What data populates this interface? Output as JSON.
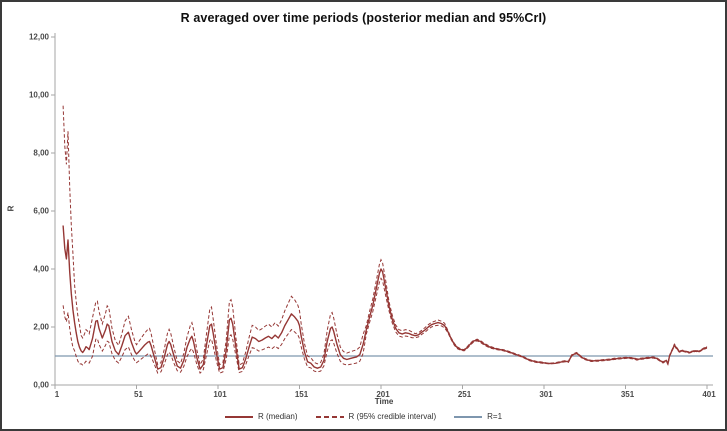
{
  "chart_data": {
    "type": "line",
    "title": "R averaged over time periods (posterior median and 95%CrI)",
    "xlabel": "Time",
    "ylabel": "R",
    "xlim": [
      1,
      401
    ],
    "ylim": [
      0,
      12
    ],
    "grid": false,
    "legend_position": "bottom",
    "x_ticks": [
      {
        "value": 1,
        "label": "1"
      },
      {
        "value": 51,
        "label": "51"
      },
      {
        "value": 101,
        "label": "101"
      },
      {
        "value": 151,
        "label": "151"
      },
      {
        "value": 201,
        "label": "201"
      },
      {
        "value": 251,
        "label": "251"
      },
      {
        "value": 301,
        "label": "301"
      },
      {
        "value": 351,
        "label": "351"
      },
      {
        "value": 401,
        "label": "401"
      }
    ],
    "y_ticks": [
      {
        "value": 0,
        "label": "0,00"
      },
      {
        "value": 2,
        "label": "2,00"
      },
      {
        "value": 4,
        "label": "4,00"
      },
      {
        "value": 6,
        "label": "6,00"
      },
      {
        "value": 8,
        "label": "8,00"
      },
      {
        "value": 10,
        "label": "10,00"
      },
      {
        "value": 12,
        "label": "12,00"
      }
    ],
    "reference_line": {
      "label": "R=1",
      "value": 1,
      "color": "#7E96AE"
    },
    "series": [
      {
        "name": "R (median)",
        "style": "solid",
        "color": "#953735"
      },
      {
        "name": "R (95% credible interval)",
        "style": "dashed",
        "color": "#953735"
      }
    ],
    "columns": [
      "time",
      "lower95",
      "median",
      "upper95"
    ],
    "points": [
      [
        6,
        2.75,
        5.5,
        9.63
      ],
      [
        7,
        2.35,
        4.7,
        8.23
      ],
      [
        8,
        2.18,
        4.35,
        7.61
      ],
      [
        9,
        2.5,
        5.0,
        8.75
      ],
      [
        10,
        1.95,
        3.9,
        6.83
      ],
      [
        11,
        1.58,
        3.15,
        5.51
      ],
      [
        12,
        1.3,
        2.6,
        4.55
      ],
      [
        13,
        1.18,
        2.15,
        3.44
      ],
      [
        14,
        0.99,
        1.8,
        2.88
      ],
      [
        15,
        0.83,
        1.5,
        2.4
      ],
      [
        16,
        0.72,
        1.3,
        2.08
      ],
      [
        17,
        0.73,
        1.18,
        1.71
      ],
      [
        18,
        0.69,
        1.12,
        1.62
      ],
      [
        19,
        0.74,
        1.2,
        1.74
      ],
      [
        20,
        0.82,
        1.32,
        1.91
      ],
      [
        21,
        0.79,
        1.28,
        1.86
      ],
      [
        22,
        0.76,
        1.22,
        1.77
      ],
      [
        24,
        0.99,
        1.6,
        2.32
      ],
      [
        26,
        1.58,
        2.2,
        2.86
      ],
      [
        27,
        1.6,
        2.22,
        2.89
      ],
      [
        28,
        1.4,
        1.95,
        2.54
      ],
      [
        30,
        1.17,
        1.62,
        2.11
      ],
      [
        32,
        1.37,
        1.9,
        2.47
      ],
      [
        33,
        1.51,
        2.1,
        2.73
      ],
      [
        34,
        1.48,
        2.05,
        2.67
      ],
      [
        36,
        1.08,
        1.5,
        1.95
      ],
      [
        38,
        0.85,
        1.18,
        1.53
      ],
      [
        40,
        0.76,
        1.05,
        1.37
      ],
      [
        42,
        0.97,
        1.35,
        1.76
      ],
      [
        44,
        1.22,
        1.7,
        2.21
      ],
      [
        46,
        1.31,
        1.82,
        2.37
      ],
      [
        48,
        1.04,
        1.45,
        1.89
      ],
      [
        50,
        0.83,
        1.15,
        1.5
      ],
      [
        51,
        0.77,
        1.07,
        1.39
      ],
      [
        52,
        0.81,
        1.12,
        1.46
      ],
      [
        54,
        0.9,
        1.25,
        1.63
      ],
      [
        56,
        0.99,
        1.38,
        1.79
      ],
      [
        58,
        1.07,
        1.48,
        1.92
      ],
      [
        59,
        1.08,
        1.5,
        1.95
      ],
      [
        60,
        0.97,
        1.35,
        1.76
      ],
      [
        62,
        0.71,
        0.95,
        1.22
      ],
      [
        64,
        0.41,
        0.55,
        0.7
      ],
      [
        66,
        0.45,
        0.6,
        0.77
      ],
      [
        68,
        0.71,
        0.95,
        1.22
      ],
      [
        70,
        1.05,
        1.4,
        1.79
      ],
      [
        71,
        1.13,
        1.5,
        1.92
      ],
      [
        72,
        1.05,
        1.4,
        1.79
      ],
      [
        74,
        0.75,
        1.0,
        1.28
      ],
      [
        76,
        0.49,
        0.65,
        0.83
      ],
      [
        78,
        0.44,
        0.58,
        0.74
      ],
      [
        80,
        0.64,
        0.85,
        1.09
      ],
      [
        82,
        0.98,
        1.3,
        1.66
      ],
      [
        84,
        1.2,
        1.6,
        2.05
      ],
      [
        85,
        1.26,
        1.68,
        2.15
      ],
      [
        86,
        1.13,
        1.5,
        1.92
      ],
      [
        88,
        0.71,
        0.95,
        1.22
      ],
      [
        90,
        0.41,
        0.55,
        0.7
      ],
      [
        92,
        0.53,
        0.7,
        0.9
      ],
      [
        94,
        1.05,
        1.4,
        1.79
      ],
      [
        96,
        1.54,
        2.05,
        2.62
      ],
      [
        97,
        1.58,
        2.1,
        2.69
      ],
      [
        98,
        1.35,
        1.8,
        2.3
      ],
      [
        100,
        0.83,
        1.1,
        1.41
      ],
      [
        102,
        0.41,
        0.55,
        0.7
      ],
      [
        104,
        0.45,
        0.6,
        0.77
      ],
      [
        106,
        0.9,
        1.2,
        1.54
      ],
      [
        108,
        1.69,
        2.25,
        2.88
      ],
      [
        109,
        1.73,
        2.3,
        2.94
      ],
      [
        110,
        1.58,
        2.1,
        2.69
      ],
      [
        112,
        1.01,
        1.3,
        1.63
      ],
      [
        114,
        0.43,
        0.55,
        0.69
      ],
      [
        116,
        0.47,
        0.6,
        0.75
      ],
      [
        118,
        0.7,
        0.9,
        1.13
      ],
      [
        120,
        1.01,
        1.3,
        1.63
      ],
      [
        122,
        1.29,
        1.65,
        2.06
      ],
      [
        124,
        1.25,
        1.6,
        2.0
      ],
      [
        126,
        1.17,
        1.5,
        1.88
      ],
      [
        128,
        1.21,
        1.55,
        1.94
      ],
      [
        130,
        1.26,
        1.62,
        2.03
      ],
      [
        132,
        1.31,
        1.68,
        2.1
      ],
      [
        134,
        1.25,
        1.6,
        2.0
      ],
      [
        136,
        1.34,
        1.72,
        2.15
      ],
      [
        138,
        1.26,
        1.62,
        2.03
      ],
      [
        140,
        1.4,
        1.8,
        2.25
      ],
      [
        142,
        1.6,
        2.05,
        2.56
      ],
      [
        144,
        1.76,
        2.25,
        2.81
      ],
      [
        146,
        1.91,
        2.45,
        3.06
      ],
      [
        148,
        1.83,
        2.35,
        2.94
      ],
      [
        150,
        1.72,
        2.2,
        2.75
      ],
      [
        151,
        1.6,
        2.05,
        2.56
      ],
      [
        152,
        1.33,
        1.7,
        2.13
      ],
      [
        154,
        0.9,
        1.15,
        1.44
      ],
      [
        156,
        0.62,
        0.8,
        1.0
      ],
      [
        158,
        0.59,
        0.75,
        0.94
      ],
      [
        160,
        0.48,
        0.62,
        0.78
      ],
      [
        162,
        0.45,
        0.58,
        0.73
      ],
      [
        164,
        0.48,
        0.62,
        0.78
      ],
      [
        166,
        0.66,
        0.85,
        1.06
      ],
      [
        168,
        1.17,
        1.5,
        1.88
      ],
      [
        170,
        1.52,
        1.95,
        2.44
      ],
      [
        171,
        1.56,
        2.0,
        2.5
      ],
      [
        172,
        1.44,
        1.85,
        2.31
      ],
      [
        174,
        1.09,
        1.4,
        1.75
      ],
      [
        176,
        0.82,
        1.05,
        1.31
      ],
      [
        178,
        0.72,
        0.92,
        1.15
      ],
      [
        180,
        0.69,
        0.88,
        1.1
      ],
      [
        182,
        0.71,
        0.91,
        1.14
      ],
      [
        184,
        0.73,
        0.94,
        1.18
      ],
      [
        186,
        0.76,
        0.97,
        1.21
      ],
      [
        188,
        0.82,
        1.05,
        1.31
      ],
      [
        190,
        1.09,
        1.4,
        1.75
      ],
      [
        192,
        1.75,
        1.9,
        2.05
      ],
      [
        194,
        2.16,
        2.35,
        2.54
      ],
      [
        196,
        2.53,
        2.75,
        2.97
      ],
      [
        198,
        3.04,
        3.3,
        3.56
      ],
      [
        200,
        3.54,
        3.85,
        4.16
      ],
      [
        201,
        3.68,
        4.0,
        4.32
      ],
      [
        202,
        3.59,
        3.9,
        4.21
      ],
      [
        204,
        3.04,
        3.3,
        3.56
      ],
      [
        206,
        2.54,
        2.7,
        2.86
      ],
      [
        208,
        2.12,
        2.25,
        2.39
      ],
      [
        210,
        1.83,
        1.95,
        2.07
      ],
      [
        212,
        1.69,
        1.8,
        1.91
      ],
      [
        214,
        1.65,
        1.76,
        1.87
      ],
      [
        216,
        1.69,
        1.8,
        1.91
      ],
      [
        218,
        1.67,
        1.78,
        1.89
      ],
      [
        220,
        1.63,
        1.73,
        1.83
      ],
      [
        222,
        1.63,
        1.7,
        1.77
      ],
      [
        224,
        1.66,
        1.73,
        1.8
      ],
      [
        226,
        1.75,
        1.82,
        1.89
      ],
      [
        228,
        1.82,
        1.9,
        1.98
      ],
      [
        230,
        1.92,
        2.0,
        2.08
      ],
      [
        232,
        2.0,
        2.08,
        2.16
      ],
      [
        234,
        2.04,
        2.12,
        2.2
      ],
      [
        236,
        2.06,
        2.15,
        2.24
      ],
      [
        238,
        2.04,
        2.12,
        2.2
      ],
      [
        240,
        1.97,
        2.05,
        2.13
      ],
      [
        242,
        1.81,
        1.85,
        1.89
      ],
      [
        244,
        1.57,
        1.6,
        1.63
      ],
      [
        246,
        1.37,
        1.4,
        1.43
      ],
      [
        248,
        1.25,
        1.28,
        1.31
      ],
      [
        250,
        1.2,
        1.22,
        1.24
      ],
      [
        252,
        1.18,
        1.2,
        1.22
      ],
      [
        254,
        1.27,
        1.3,
        1.33
      ],
      [
        256,
        1.39,
        1.42,
        1.45
      ],
      [
        258,
        1.49,
        1.52,
        1.55
      ],
      [
        260,
        1.52,
        1.55,
        1.58
      ],
      [
        262,
        1.47,
        1.5,
        1.53
      ],
      [
        264,
        1.39,
        1.42,
        1.45
      ],
      [
        266,
        1.33,
        1.36,
        1.39
      ],
      [
        268,
        1.27,
        1.3,
        1.33
      ],
      [
        272,
        1.22,
        1.24,
        1.26
      ],
      [
        276,
        1.18,
        1.2,
        1.22
      ],
      [
        280,
        1.11,
        1.13,
        1.15
      ],
      [
        284,
        1.03,
        1.05,
        1.07
      ],
      [
        288,
        0.95,
        0.97,
        0.99
      ],
      [
        292,
        0.84,
        0.86,
        0.88
      ],
      [
        296,
        0.78,
        0.8,
        0.82
      ],
      [
        300,
        0.75,
        0.77,
        0.79
      ],
      [
        304,
        0.73,
        0.74,
        0.75
      ],
      [
        308,
        0.74,
        0.75,
        0.77
      ],
      [
        312,
        0.78,
        0.8,
        0.82
      ],
      [
        314,
        0.8,
        0.82,
        0.84
      ],
      [
        316,
        0.78,
        0.8,
        0.82
      ],
      [
        318,
        1.0,
        1.02,
        1.04
      ],
      [
        320,
        1.06,
        1.08,
        1.1
      ],
      [
        321,
        1.08,
        1.1,
        1.12
      ],
      [
        322,
        1.04,
        1.06,
        1.08
      ],
      [
        324,
        0.94,
        0.96,
        0.98
      ],
      [
        326,
        0.88,
        0.9,
        0.92
      ],
      [
        328,
        0.84,
        0.86,
        0.88
      ],
      [
        330,
        0.81,
        0.83,
        0.85
      ],
      [
        334,
        0.82,
        0.84,
        0.86
      ],
      [
        338,
        0.84,
        0.86,
        0.88
      ],
      [
        342,
        0.86,
        0.88,
        0.9
      ],
      [
        344,
        0.88,
        0.9,
        0.92
      ],
      [
        348,
        0.9,
        0.92,
        0.94
      ],
      [
        352,
        0.92,
        0.94,
        0.96
      ],
      [
        356,
        0.9,
        0.92,
        0.94
      ],
      [
        358,
        0.86,
        0.88,
        0.9
      ],
      [
        360,
        0.88,
        0.9,
        0.92
      ],
      [
        364,
        0.91,
        0.93,
        0.95
      ],
      [
        368,
        0.93,
        0.95,
        0.97
      ],
      [
        370,
        0.9,
        0.92,
        0.94
      ],
      [
        372,
        0.83,
        0.85,
        0.87
      ],
      [
        374,
        0.76,
        0.78,
        0.8
      ],
      [
        376,
        0.83,
        0.85,
        0.87
      ],
      [
        377,
        0.71,
        0.72,
        0.73
      ],
      [
        378,
        0.98,
        1.0,
        1.02
      ],
      [
        380,
        1.23,
        1.25,
        1.28
      ],
      [
        381,
        1.35,
        1.38,
        1.41
      ],
      [
        382,
        1.27,
        1.3,
        1.33
      ],
      [
        384,
        1.13,
        1.15,
        1.17
      ],
      [
        386,
        1.16,
        1.18,
        1.2
      ],
      [
        388,
        1.13,
        1.15,
        1.17
      ],
      [
        390,
        1.1,
        1.12,
        1.14
      ],
      [
        392,
        1.13,
        1.15,
        1.17
      ],
      [
        394,
        1.16,
        1.18,
        1.2
      ],
      [
        396,
        1.13,
        1.15,
        1.17
      ],
      [
        398,
        1.2,
        1.22,
        1.24
      ],
      [
        400,
        1.25,
        1.28,
        1.31
      ],
      [
        401,
        1.27,
        1.3,
        1.33
      ]
    ]
  },
  "colors": {
    "series_red": "#953735",
    "reference_blue": "#7E96AE",
    "axis_gray": "#A6A6A6",
    "frame_border": "#3a3a3a"
  }
}
